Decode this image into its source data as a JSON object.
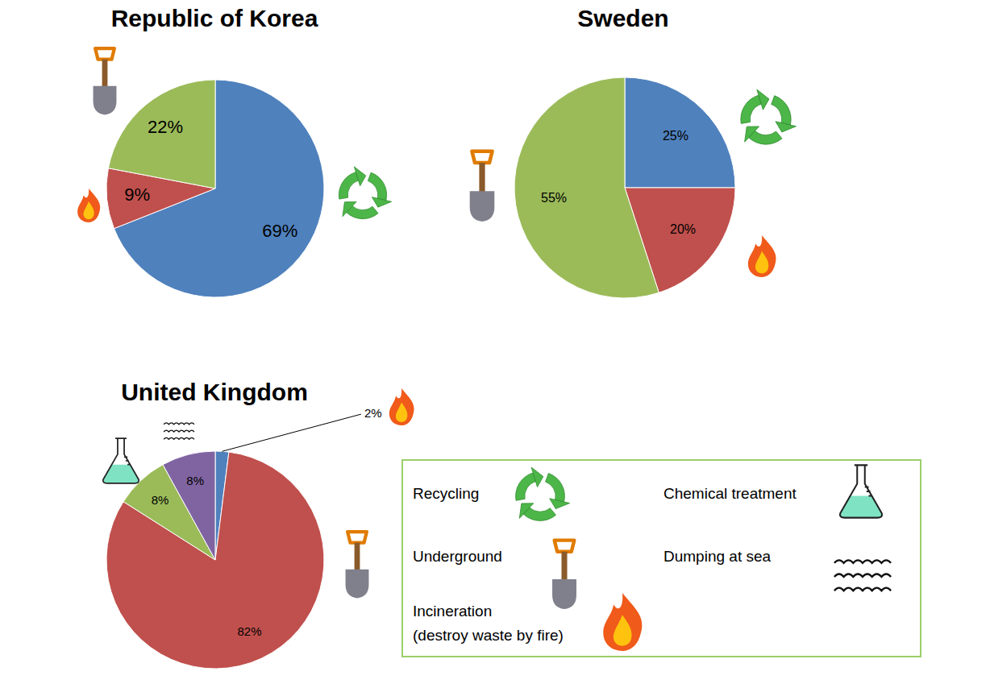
{
  "chart_data": [
    {
      "type": "pie",
      "title": "Republic of Korea",
      "categories": [
        "Recycling",
        "Incineration",
        "Underground"
      ],
      "values": [
        69,
        9,
        22
      ],
      "value_labels": [
        "69%",
        "9%",
        "22%"
      ],
      "colors": [
        "#4f81bd",
        "#c0504d",
        "#9bbb59"
      ],
      "data_labels": true
    },
    {
      "type": "pie",
      "title": "Sweden",
      "categories": [
        "Recycling",
        "Incineration",
        "Underground"
      ],
      "values": [
        25,
        20,
        55
      ],
      "value_labels": [
        "25%",
        "20%",
        "55%"
      ],
      "colors": [
        "#4f81bd",
        "#c0504d",
        "#9bbb59"
      ],
      "data_labels": true
    },
    {
      "type": "pie",
      "title": "United Kingdom",
      "categories": [
        "Incineration",
        "Underground",
        "Chemical treatment",
        "Dumping at sea"
      ],
      "values": [
        2,
        82,
        8,
        8
      ],
      "value_labels": [
        "2%",
        "82%",
        "8%",
        "8%"
      ],
      "colors": [
        "#4f81bd",
        "#c0504d",
        "#9bbb59",
        "#8064a2"
      ],
      "data_labels": true
    }
  ],
  "legend_box": {
    "entries": [
      {
        "label": "Recycling"
      },
      {
        "label": "Underground"
      },
      {
        "label": "Incineration",
        "note": "(destroy waste by fire)"
      },
      {
        "label": "Chemical treatment"
      },
      {
        "label": "Dumping at sea"
      }
    ]
  }
}
